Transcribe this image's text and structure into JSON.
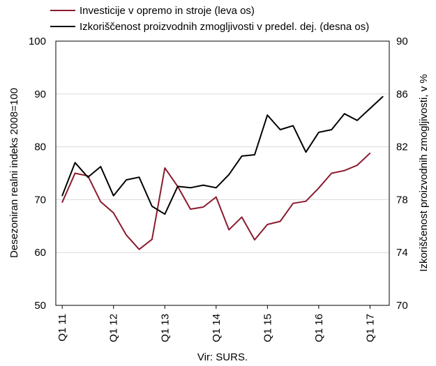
{
  "chart_data": {
    "type": "line",
    "x": [
      "Q1 11",
      "Q2 11",
      "Q3 11",
      "Q4 11",
      "Q1 12",
      "Q2 12",
      "Q3 12",
      "Q4 12",
      "Q1 13",
      "Q2 13",
      "Q3 13",
      "Q4 13",
      "Q1 14",
      "Q2 14",
      "Q3 14",
      "Q4 14",
      "Q1 15",
      "Q2 15",
      "Q3 15",
      "Q4 15",
      "Q1 16",
      "Q2 16",
      "Q3 16",
      "Q4 16",
      "Q1 17",
      "Q2 17"
    ],
    "xtick_labels": [
      "Q1 11",
      "Q1 12",
      "Q1 13",
      "Q1 14",
      "Q1 15",
      "Q1 16",
      "Q1 17"
    ],
    "series": [
      {
        "name": "Investicije v opremo in stroje (leva os)",
        "axis": "left",
        "color": "#8B1A2E",
        "values": [
          69.5,
          75.0,
          74.5,
          69.6,
          67.5,
          63.3,
          60.6,
          62.5,
          76.0,
          72.5,
          68.2,
          68.6,
          70.5,
          64.3,
          66.7,
          62.4,
          65.3,
          65.9,
          69.3,
          69.7,
          72.2,
          75.0,
          75.5,
          76.5,
          78.8,
          null
        ]
      },
      {
        "name": "Izkoriščenost proizvodnih zmogljivosti v predel. dej. (desna os)",
        "axis": "right",
        "color": "#000000",
        "values": [
          78.3,
          80.8,
          79.7,
          80.5,
          78.3,
          79.5,
          79.7,
          77.5,
          76.9,
          79.0,
          78.9,
          79.1,
          78.9,
          79.9,
          81.3,
          81.4,
          84.4,
          83.3,
          83.6,
          81.6,
          83.1,
          83.3,
          84.5,
          84.0,
          84.9,
          85.8
        ]
      }
    ],
    "yleft": {
      "label": "Desezoniran realni indeks 2008=100",
      "lim": [
        50,
        100
      ],
      "ticks": [
        50,
        60,
        70,
        80,
        90,
        100
      ]
    },
    "yright": {
      "label": "Izkoriščenost proizvodnih zmogljivosti, v %",
      "lim": [
        70,
        90
      ],
      "ticks": [
        70,
        74,
        78,
        82,
        86,
        90
      ]
    },
    "legend_position": "top-left",
    "grid": "horizontal",
    "source": "Vir: SURS."
  }
}
